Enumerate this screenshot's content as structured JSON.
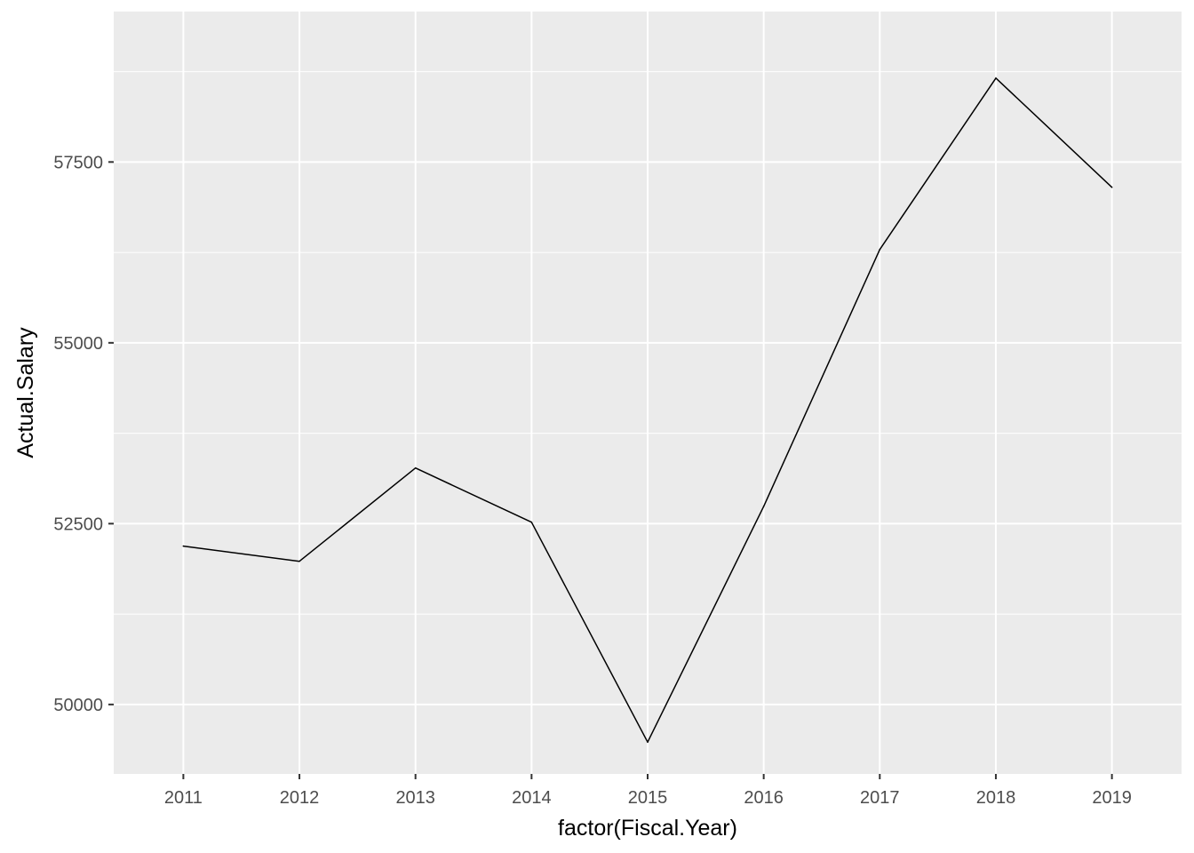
{
  "chart_data": {
    "type": "line",
    "xlabel": "factor(Fiscal.Year)",
    "ylabel": "Actual.Salary",
    "categories": [
      "2011",
      "2012",
      "2013",
      "2014",
      "2015",
      "2016",
      "2017",
      "2018",
      "2019"
    ],
    "series": [
      {
        "values": [
          52190,
          51980,
          53270,
          52520,
          49480,
          52740,
          56290,
          58660,
          57150
        ]
      }
    ],
    "ylim": [
      49040,
      59580
    ],
    "yticks": [
      50000,
      52500,
      55000,
      57500
    ],
    "ytick_labels": [
      "50000",
      "52500",
      "55000",
      "57500"
    ],
    "grid": true,
    "colors": {
      "panel_background": "#ebebeb",
      "grid_line": "#ffffff",
      "series_line": "#000000",
      "tick_text": "#4d4d4d"
    }
  }
}
